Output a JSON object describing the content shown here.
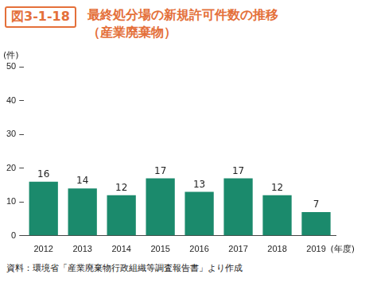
{
  "chart_data": {
    "type": "bar",
    "figure_number": "図3-1-18",
    "title": "最終処分場の新規許可件数の推移",
    "subtitle": "（産業廃棄物）",
    "y_label": "(件)",
    "x_label": "(年度)",
    "source": "資料：環境省「産業廃棄物行政組織等調査報告書」より作成",
    "categories": [
      "2012",
      "2013",
      "2014",
      "2015",
      "2016",
      "2017",
      "2018",
      "2019"
    ],
    "values": [
      16,
      14,
      12,
      17,
      13,
      17,
      12,
      7
    ],
    "color": "#1b8a6c",
    "ylim": [
      0,
      50
    ],
    "yticks": [
      0,
      10,
      20,
      30,
      40,
      50
    ],
    "grid": false,
    "data_labels": true
  }
}
